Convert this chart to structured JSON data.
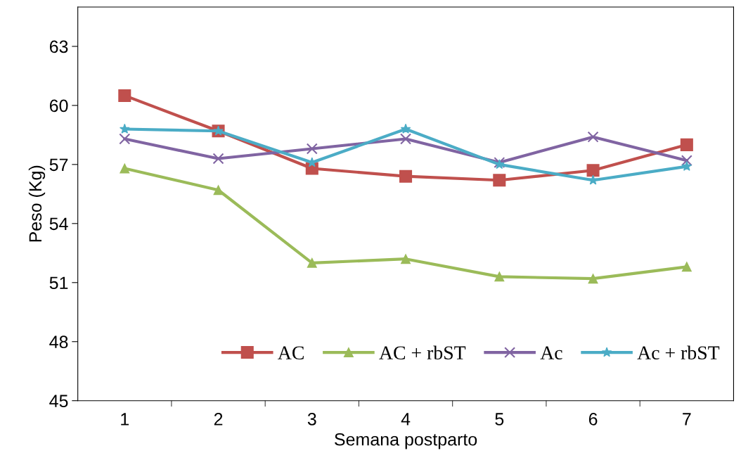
{
  "chart_data": {
    "type": "line",
    "xlabel": "Semana postparto",
    "ylabel": "Peso (Kg)",
    "categories": [
      "1",
      "2",
      "3",
      "4",
      "5",
      "6",
      "7"
    ],
    "ylim": [
      45,
      65
    ],
    "yticks": [
      45,
      48,
      51,
      54,
      57,
      60,
      63
    ],
    "grid": false,
    "legend": "bottom",
    "line_style": "solid",
    "series": [
      {
        "name": "AC",
        "color": "#c0504d",
        "marker": "square",
        "values": [
          60.5,
          58.7,
          56.8,
          56.4,
          56.2,
          56.7,
          58.0
        ]
      },
      {
        "name": "AC + rbST",
        "color": "#9bbb59",
        "marker": "triangle",
        "values": [
          56.8,
          55.7,
          52.0,
          52.2,
          51.3,
          51.2,
          51.8
        ]
      },
      {
        "name": "Ac",
        "color": "#8064a2",
        "marker": "cross",
        "values": [
          58.3,
          57.3,
          57.8,
          58.3,
          57.1,
          58.4,
          57.2
        ]
      },
      {
        "name": "Ac + rbST",
        "color": "#4bacc6",
        "marker": "star",
        "values": [
          58.8,
          58.7,
          57.1,
          58.8,
          57.0,
          56.2,
          56.9
        ]
      }
    ]
  }
}
